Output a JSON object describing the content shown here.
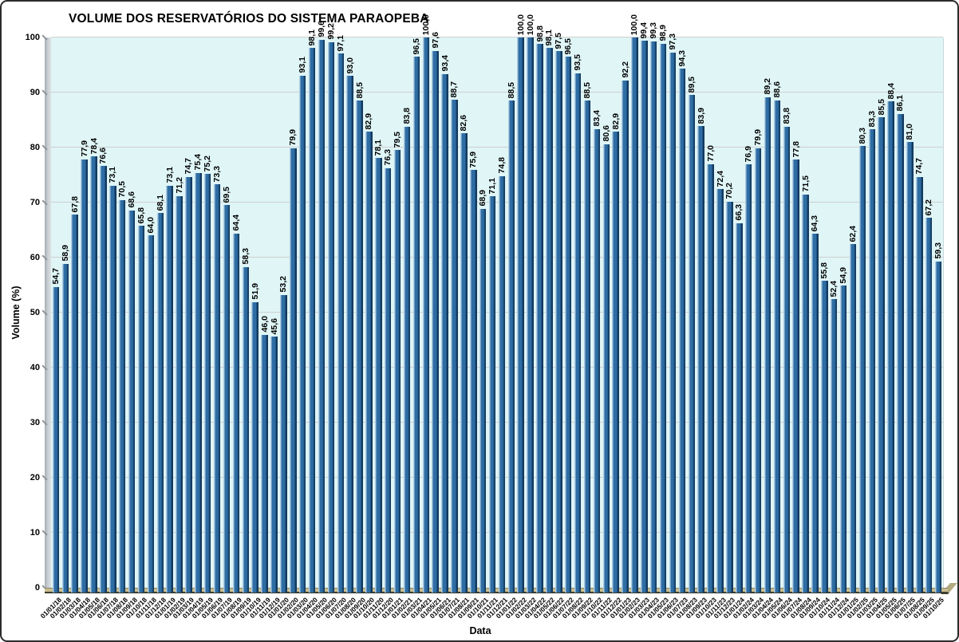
{
  "chart_data": {
    "type": "bar",
    "title": "VOLUME DOS RESERVATÓRIOS DO SISTEMA PARAOPEBA",
    "xlabel": "Data",
    "ylabel": "Volume (%)",
    "ylim": [
      0,
      100
    ],
    "ytick_step": 10,
    "grid": true,
    "legend": "none",
    "decimal_separator": ",",
    "categories": [
      "01/01/18",
      "01/02/18",
      "01/03/18",
      "01/04/18",
      "01/05/18",
      "01/06/18",
      "01/07/18",
      "01/08/18",
      "01/09/18",
      "01/10/18",
      "01/11/18",
      "01/12/18",
      "01/01/19",
      "01/02/19",
      "01/03/19",
      "01/04/19",
      "01/05/19",
      "01/06/19",
      "01/07/19",
      "01/08/19",
      "01/09/19",
      "01/10/19",
      "01/11/19",
      "01/12/19",
      "01/01/20",
      "01/02/20",
      "01/03/20",
      "01/04/20",
      "01/05/20",
      "01/06/20",
      "01/07/20",
      "01/08/20",
      "01/09/20",
      "01/10/20",
      "01/11/20",
      "01/12/20",
      "01/01/21",
      "01/02/21",
      "01/03/21",
      "01/04/21",
      "01/05/21",
      "01/06/21",
      "01/07/21",
      "01/08/21",
      "01/09/21",
      "01/10/21",
      "01/11/21",
      "01/12/21",
      "01/01/22",
      "01/02/22",
      "01/03/22",
      "01/04/22",
      "01/05/22",
      "01/06/22",
      "01/07/22",
      "01/08/22",
      "01/09/22",
      "01/10/22",
      "01/11/22",
      "01/12/22",
      "01/01/23",
      "01/02/23",
      "01/03/23",
      "01/04/23",
      "01/05/23",
      "01/06/23",
      "01/07/23",
      "01/08/23",
      "01/09/23",
      "01/10/23",
      "01/11/23",
      "01/12/23",
      "01/01/24",
      "01/02/24",
      "01/03/24",
      "01/04/24",
      "01/05/24",
      "01/06/24",
      "01/07/24",
      "01/08/24",
      "01/09/24",
      "01/10/24",
      "01/11/24",
      "01/12/24",
      "01/01/25",
      "01/02/25",
      "01/03/25",
      "01/04/25",
      "01/05/25",
      "01/06/25",
      "01/07/25",
      "01/08/25",
      "01/09/25",
      "01/10/25"
    ],
    "values": [
      54.7,
      58.9,
      67.8,
      77.9,
      78.4,
      76.6,
      73.1,
      70.5,
      68.6,
      65.8,
      64.0,
      68.1,
      73.1,
      71.2,
      74.7,
      75.4,
      75.2,
      73.3,
      69.5,
      64.4,
      58.3,
      51.9,
      46.0,
      45.6,
      53.2,
      79.9,
      93.1,
      98.1,
      99.6,
      99.2,
      97.1,
      93.0,
      88.5,
      82.9,
      78.1,
      76.3,
      79.5,
      83.8,
      96.5,
      100.0,
      97.6,
      93.4,
      88.7,
      82.6,
      75.9,
      68.9,
      71.1,
      74.8,
      88.5,
      100.0,
      100.0,
      98.8,
      98.1,
      97.5,
      96.5,
      93.5,
      88.5,
      83.4,
      80.6,
      82.9,
      92.2,
      100.0,
      99.4,
      99.3,
      98.9,
      97.3,
      94.3,
      89.5,
      83.9,
      77.0,
      72.4,
      70.2,
      66.3,
      76.9,
      79.9,
      89.2,
      88.6,
      83.8,
      77.8,
      71.5,
      64.3,
      55.8,
      52.4,
      54.9,
      62.4,
      80.3,
      83.3,
      85.5,
      88.4,
      86.1,
      81.0,
      74.7,
      67.2,
      59.3
    ],
    "colors": {
      "bar_fill": "#2e6da4",
      "bar_highlight": "#aecbe2",
      "bar_shadow": "#143a5f",
      "plot_background": "#dff5f6",
      "gridline": "#cfcfcf",
      "wall": "#c6ccd0",
      "floor": "#c9bd8e",
      "text": "#000000"
    }
  }
}
